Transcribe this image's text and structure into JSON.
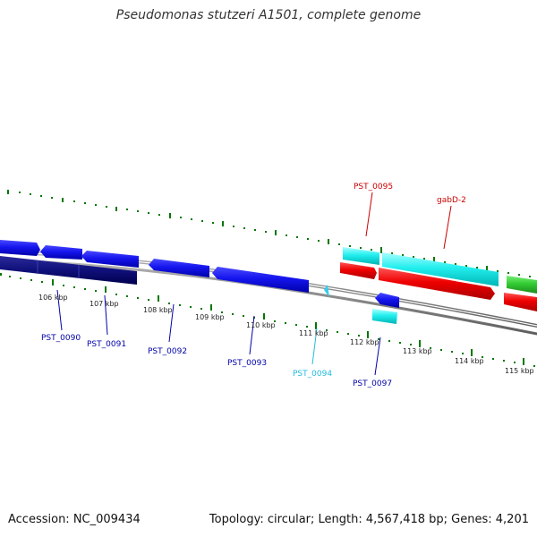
{
  "title": "Pseudomonas stutzeri A1501, complete genome",
  "footer": {
    "accession": "Accession: NC_009434",
    "stats": "Topology: circular; Length: 4,567,418 bp; Genes: 4,201"
  },
  "colors": {
    "forward_cds": "#00ffff",
    "forward_gene": "#ff0000",
    "reverse_cds": "#0000ff",
    "reverse_gene": "#000080",
    "rna": "#33cc33",
    "backbone": "#888888",
    "ticks": "#007700",
    "label_red": "#cc0000",
    "label_blue": "#0000aa",
    "label_cyan": "#22bbdd"
  },
  "kbp_labels": [
    "106 kbp",
    "107 kbp",
    "108 kbp",
    "109 kbp",
    "110 kbp",
    "111 kbp",
    "112 kbp",
    "113 kbp",
    "114 kbp",
    "115 kbp"
  ],
  "gene_labels": [
    {
      "text": "PST_0095",
      "color": "#cc0000"
    },
    {
      "text": "gabD-2",
      "color": "#cc0000"
    },
    {
      "text": "PST_0090",
      "color": "#0000aa"
    },
    {
      "text": "PST_0091",
      "color": "#0000aa"
    },
    {
      "text": "PST_0092",
      "color": "#0000aa"
    },
    {
      "text": "PST_0093",
      "color": "#0000aa"
    },
    {
      "text": "PST_0094",
      "color": "#22bbdd"
    },
    {
      "text": "PST_0097",
      "color": "#0000aa"
    }
  ]
}
